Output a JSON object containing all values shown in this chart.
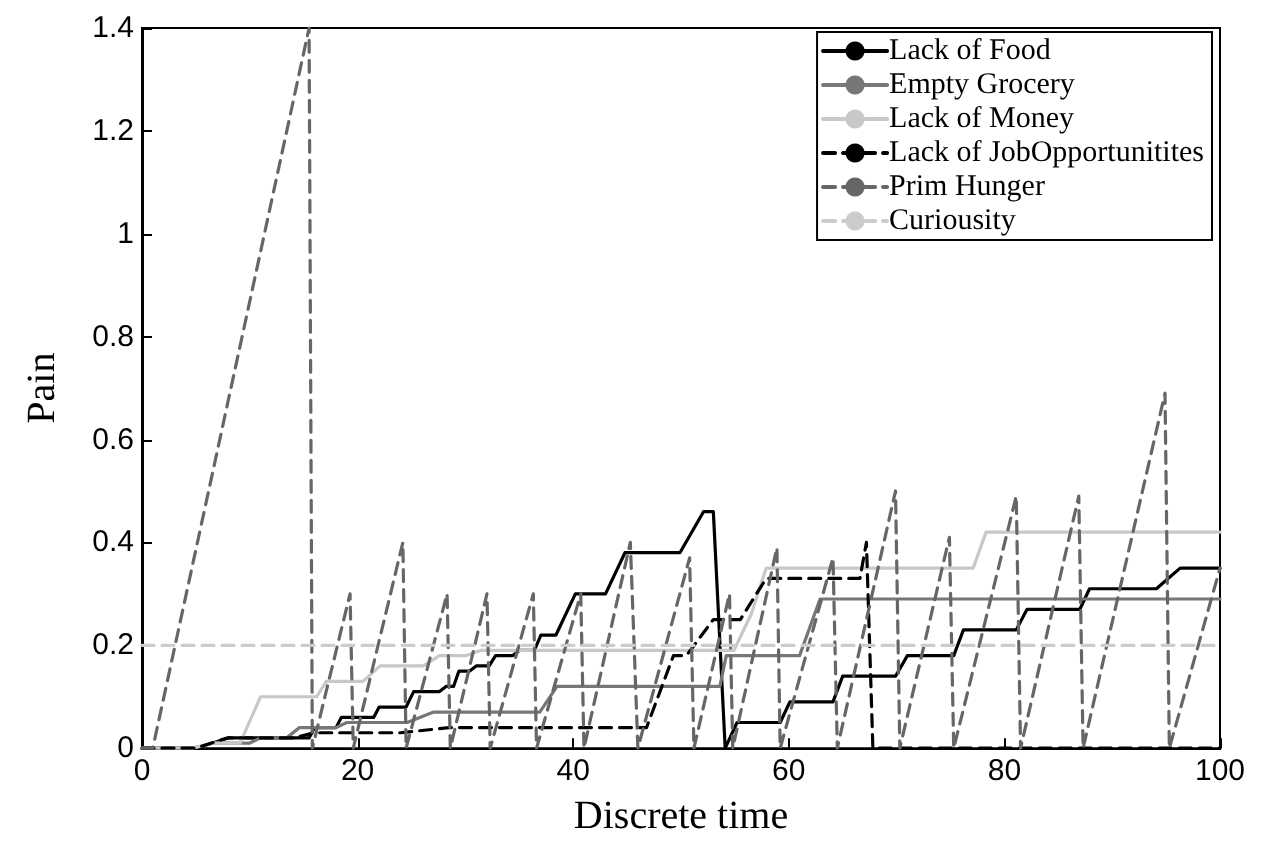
{
  "chart_data": {
    "type": "line",
    "xlabel": "Discrete time",
    "ylabel": "Pain",
    "xlim": [
      0,
      100
    ],
    "xticks": [
      0,
      20,
      40,
      60,
      80,
      100
    ],
    "ylim": [
      0,
      1.4
    ],
    "yticks": [
      0,
      0.2,
      0.4,
      0.6,
      0.8,
      1,
      1.2,
      1.4
    ],
    "grid": false,
    "legend": "top right",
    "marker": "none",
    "series": [
      {
        "name": "Lack of Food",
        "color": "#000000",
        "line_style": "solid",
        "x": [
          0,
          5,
          8,
          15.5,
          16,
          18,
          18.5,
          21.5,
          22,
          24.5,
          25.2,
          27.6,
          28.2,
          28.9,
          29.4,
          30.4,
          31,
          32.2,
          32.8,
          34.4,
          35,
          36.4,
          37,
          38.4,
          40.2,
          43,
          44.8,
          49.9,
          52.1,
          53,
          54.1,
          55.2,
          59.2,
          60.1,
          64.1,
          65,
          69.9,
          71,
          75.3,
          76.2,
          81.1,
          82.1,
          87,
          87.9,
          94.1,
          96.3,
          100
        ],
        "values": [
          0,
          0,
          0.02,
          0.02,
          0.04,
          0.04,
          0.06,
          0.06,
          0.08,
          0.08,
          0.11,
          0.11,
          0.12,
          0.12,
          0.15,
          0.15,
          0.16,
          0.16,
          0.18,
          0.18,
          0.19,
          0.19,
          0.22,
          0.22,
          0.3,
          0.3,
          0.38,
          0.38,
          0.46,
          0.46,
          0,
          0.05,
          0.05,
          0.09,
          0.09,
          0.14,
          0.14,
          0.18,
          0.18,
          0.23,
          0.23,
          0.27,
          0.27,
          0.31,
          0.31,
          0.35,
          0.35
        ]
      },
      {
        "name": "Empty Grocery",
        "color": "#777777",
        "line_style": "solid",
        "x": [
          0,
          4.7,
          6.6,
          10,
          11,
          13.4,
          14.6,
          18,
          19,
          24.6,
          27,
          36.9,
          38.5,
          53.6,
          54.2,
          61,
          62.9,
          100
        ],
        "values": [
          0,
          0,
          0.01,
          0.01,
          0.02,
          0.02,
          0.04,
          0.04,
          0.05,
          0.05,
          0.07,
          0.07,
          0.12,
          0.12,
          0.18,
          0.18,
          0.29,
          0.29
        ]
      },
      {
        "name": "Lack of Money",
        "color": "#c8c8c8",
        "line_style": "solid",
        "x": [
          0,
          4.7,
          6.6,
          9.1,
          11,
          16.2,
          17.1,
          20.5,
          22.1,
          26.1,
          27.6,
          30.1,
          31.4,
          54.9,
          56.5,
          57.9,
          77.1,
          78.3,
          100
        ],
        "values": [
          0,
          0,
          0.01,
          0.01,
          0.1,
          0.1,
          0.13,
          0.13,
          0.16,
          0.16,
          0.18,
          0.18,
          0.19,
          0.19,
          0.26,
          0.35,
          0.35,
          0.42,
          0.42
        ]
      },
      {
        "name": "Lack of JobOpportunitites",
        "color": "#000000",
        "line_style": "dashed",
        "x": [
          0,
          5,
          7.9,
          14,
          16,
          24,
          28.5,
          46.8,
          49.3,
          50.5,
          53,
          55.5,
          57.9,
          66.6,
          67.2,
          67.8,
          100
        ],
        "values": [
          0,
          0,
          0.02,
          0.02,
          0.03,
          0.03,
          0.04,
          0.04,
          0.18,
          0.18,
          0.25,
          0.25,
          0.33,
          0.33,
          0.4,
          0,
          0
        ]
      },
      {
        "name": "Prim Hunger",
        "color": "#666666",
        "line_style": "dashed",
        "x": [
          0,
          1,
          15.5,
          15.8,
          19.3,
          19.6,
          24.2,
          24.5,
          28.3,
          28.6,
          32,
          32.3,
          36.3,
          36.6,
          40.7,
          41,
          45.3,
          46,
          50.8,
          51.2,
          54.5,
          54.8,
          58.9,
          59.2,
          64.1,
          64.5,
          69.9,
          70.3,
          74.9,
          75.3,
          81.1,
          81.5,
          86.9,
          87.3,
          94.9,
          95.3,
          100
        ],
        "values": [
          0,
          0,
          1.4,
          0,
          0.3,
          0,
          0.4,
          0,
          0.3,
          0,
          0.3,
          0,
          0.3,
          0,
          0.3,
          0,
          0.4,
          0,
          0.37,
          0,
          0.3,
          0,
          0.39,
          0,
          0.37,
          0,
          0.5,
          0,
          0.41,
          0,
          0.49,
          0,
          0.49,
          0,
          0.69,
          0,
          0.35
        ]
      },
      {
        "name": "Curiousity",
        "color": "#cccccc",
        "line_style": "dashed",
        "x": [
          0,
          100
        ],
        "values": [
          0.2,
          0.2
        ]
      }
    ]
  }
}
